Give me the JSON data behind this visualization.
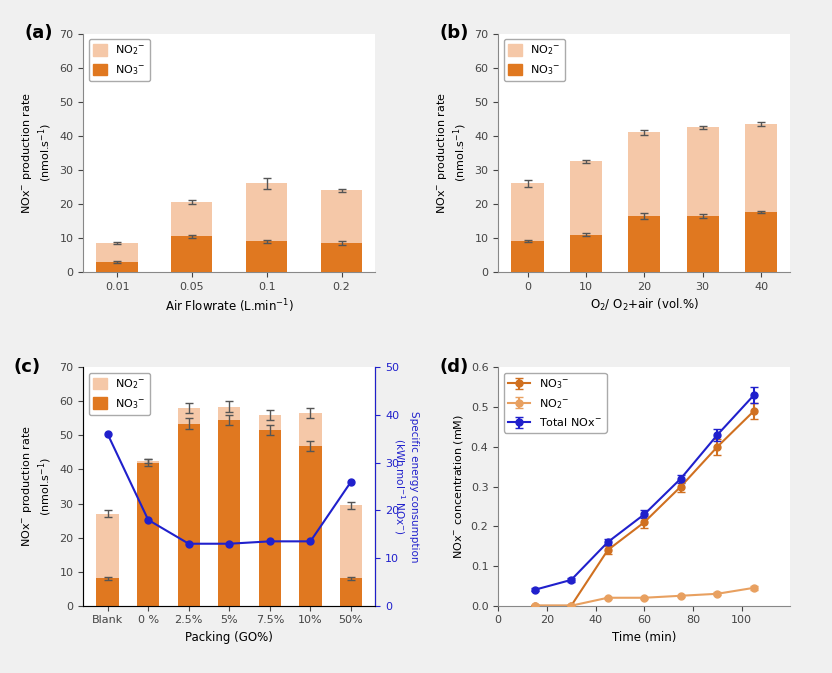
{
  "panel_a": {
    "categories": [
      "0.01",
      "0.05",
      "0.1",
      "0.2"
    ],
    "no2_values": [
      5.5,
      10.0,
      17.0,
      15.5
    ],
    "no3_values": [
      3.0,
      10.5,
      9.0,
      8.5
    ],
    "no2_err": [
      0.4,
      0.5,
      1.5,
      0.4
    ],
    "no3_err": [
      0.3,
      0.5,
      0.5,
      0.5
    ],
    "xlabel": "Air Flowrate (L.min$^{-1}$)",
    "ylabel": "NOx$^{-}$ production rate (nmol.s$^{-1}$)",
    "ylim": [
      0,
      70
    ],
    "yticks": [
      0,
      10,
      20,
      30,
      40,
      50,
      60,
      70
    ],
    "label": "(a)"
  },
  "panel_b": {
    "categories": [
      "0",
      "10",
      "20",
      "30",
      "40"
    ],
    "no2_values": [
      17.0,
      21.5,
      24.5,
      26.0,
      26.0
    ],
    "no3_values": [
      9.0,
      11.0,
      16.5,
      16.5,
      17.5
    ],
    "no2_err": [
      1.0,
      0.5,
      0.8,
      0.5,
      0.5
    ],
    "no3_err": [
      0.3,
      0.5,
      0.8,
      0.5,
      0.3
    ],
    "xlabel": "O$_2$/ O$_2$+air (vol.%)",
    "ylabel": "NOx$^{-}$ production rate (nmol.s$^{-1}$)",
    "ylim": [
      0,
      70
    ],
    "yticks": [
      0,
      10,
      20,
      30,
      40,
      50,
      60,
      70
    ],
    "label": "(b)"
  },
  "panel_c": {
    "categories": [
      "Blank",
      "0 %",
      "2.5%",
      "5%",
      "7.5%",
      "10%",
      "50%"
    ],
    "no2_values": [
      19.0,
      0.5,
      4.5,
      4.0,
      4.5,
      9.5,
      21.5
    ],
    "no3_values": [
      8.0,
      42.0,
      53.5,
      54.5,
      51.5,
      47.0,
      8.0
    ],
    "no2_err": [
      1.0,
      0.5,
      1.5,
      1.5,
      1.5,
      1.5,
      1.0
    ],
    "no3_err": [
      0.5,
      1.0,
      1.5,
      1.5,
      1.5,
      1.5,
      0.5
    ],
    "sec_values": [
      36.0,
      18.0,
      13.0,
      13.0,
      13.5,
      13.5,
      26.0
    ],
    "xlabel": "Packing (GO%)",
    "ylabel": "NOx$^{-}$ production rate (nmol.s$^{-1}$)",
    "ylabel2": "Specific energy consumption (kWh.mol$^{-1}$ NOx$^{-}$)",
    "ylim": [
      0,
      70
    ],
    "ylim2": [
      0,
      50
    ],
    "yticks": [
      0,
      10,
      20,
      30,
      40,
      50,
      60,
      70
    ],
    "yticks2": [
      0,
      10,
      20,
      30,
      40,
      50
    ],
    "label": "(c)"
  },
  "panel_d": {
    "time": [
      15,
      30,
      45,
      60,
      75,
      90,
      105
    ],
    "no3_conc": [
      0.0,
      0.0,
      0.14,
      0.21,
      0.3,
      0.4,
      0.49
    ],
    "no2_conc": [
      0.0,
      0.0,
      0.02,
      0.02,
      0.025,
      0.03,
      0.045
    ],
    "total_conc": [
      0.04,
      0.065,
      0.16,
      0.23,
      0.32,
      0.43,
      0.53
    ],
    "no3_err": [
      0.003,
      0.003,
      0.01,
      0.015,
      0.015,
      0.02,
      0.02
    ],
    "no2_err": [
      0.002,
      0.002,
      0.003,
      0.003,
      0.003,
      0.004,
      0.005
    ],
    "total_err": [
      0.004,
      0.005,
      0.008,
      0.01,
      0.01,
      0.015,
      0.02
    ],
    "xlabel": "Time (min)",
    "ylabel": "NOx$^{-}$ concentration (mM)",
    "ylim": [
      0,
      0.6
    ],
    "xlim": [
      0,
      120
    ],
    "yticks": [
      0.0,
      0.1,
      0.2,
      0.3,
      0.4,
      0.5,
      0.6
    ],
    "xticks": [
      0,
      20,
      40,
      60,
      80,
      100
    ],
    "label": "(d)"
  },
  "color_no2_light": "#F5C8A8",
  "color_no3_dark": "#E07820",
  "color_sec_line": "#2020CC",
  "color_no3_line": "#D07020",
  "color_no2_line": "#E8A060",
  "color_total_line": "#2020CC",
  "bg_color": "#F0F0F0"
}
